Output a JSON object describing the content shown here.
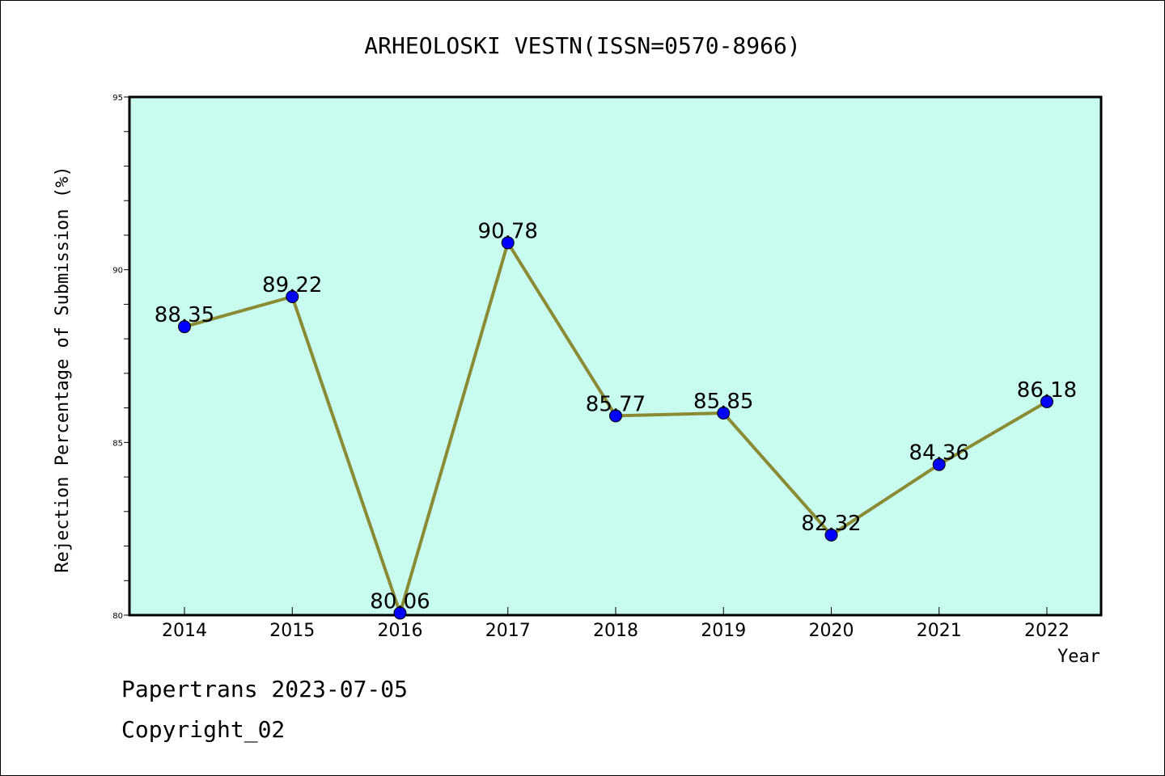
{
  "chart_data": {
    "type": "line",
    "title": "ARHEOLOSKI VESTN(ISSN=0570-8966)",
    "xlabel": "Year",
    "ylabel": "Rejection Percentage of Submission (%)",
    "categories": [
      "2014",
      "2015",
      "2016",
      "2017",
      "2018",
      "2019",
      "2020",
      "2021",
      "2022"
    ],
    "values": [
      88.35,
      89.22,
      80.06,
      90.78,
      85.77,
      85.85,
      82.32,
      84.36,
      86.18
    ],
    "data_labels": [
      "88.35",
      "89.22",
      "80.06",
      "90.78",
      "85.77",
      "85.85",
      "82.32",
      "84.36",
      "86.18"
    ],
    "ylim": [
      80,
      95
    ],
    "yticks": [
      "80",
      "85",
      "90",
      "95"
    ],
    "grid": false,
    "colors": {
      "plot_background": "#c8fcee",
      "line": "#8b8a35",
      "marker": "#0000ff"
    }
  },
  "footer": {
    "line1": "Papertrans 2023-07-05",
    "line2": "Copyright_02"
  }
}
